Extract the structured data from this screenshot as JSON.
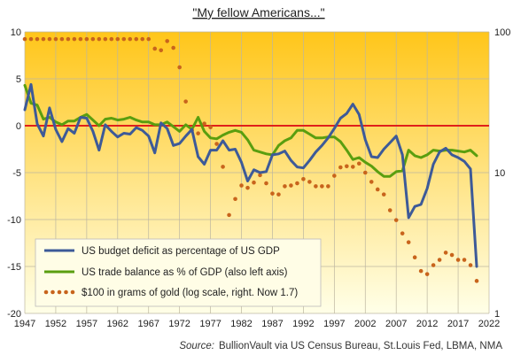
{
  "chart_data": {
    "type": "line",
    "title": "\"My fellow Americans...\"",
    "source_label": "Source:",
    "source_text": "BullionVault via US Census Bureau, St.Louis Fed, LBMA, NMA",
    "x_ticks": [
      "1947",
      "1952",
      "1957",
      "1962",
      "1967",
      "1972",
      "1977",
      "1982",
      "1987",
      "1992",
      "1997",
      "2002",
      "2007",
      "2012",
      "2017",
      "2022"
    ],
    "y_left_ticks": [
      "10",
      "5",
      "0",
      "-5",
      "-10",
      "-15",
      "-20"
    ],
    "y_right_ticks": [
      "100",
      "10",
      "1"
    ],
    "xlim": [
      1947,
      2022
    ],
    "ylim_left": [
      -20,
      10
    ],
    "ylim_right_log": [
      1,
      100
    ],
    "zero_line_color": "#e0201a",
    "grid": true,
    "legend_position": "bottom-left",
    "background_gradient": [
      "#ffc61a",
      "#ffffe8"
    ],
    "series": [
      {
        "name": "US budget deficit as percentage of US GDP",
        "color": "#3d5a98",
        "axis": "left",
        "style": "solid",
        "x": [
          1947,
          1948,
          1949,
          1950,
          1951,
          1952,
          1953,
          1954,
          1955,
          1956,
          1957,
          1958,
          1959,
          1960,
          1961,
          1962,
          1963,
          1964,
          1965,
          1966,
          1967,
          1968,
          1969,
          1970,
          1971,
          1972,
          1973,
          1974,
          1975,
          1976,
          1977,
          1978,
          1979,
          1980,
          1981,
          1982,
          1983,
          1984,
          1985,
          1986,
          1987,
          1988,
          1989,
          1990,
          1991,
          1992,
          1993,
          1994,
          1995,
          1996,
          1997,
          1998,
          1999,
          2000,
          2001,
          2002,
          2003,
          2004,
          2005,
          2006,
          2007,
          2008,
          2009,
          2010,
          2011,
          2012,
          2013,
          2014,
          2015,
          2016,
          2017,
          2018,
          2019,
          2020
        ],
        "y": [
          1.7,
          4.4,
          0.2,
          -1.1,
          1.9,
          -0.4,
          -1.7,
          -0.3,
          -0.8,
          0.9,
          0.8,
          -0.6,
          -2.6,
          0.1,
          -0.6,
          -1.2,
          -0.8,
          -0.9,
          -0.2,
          -0.5,
          -1.1,
          -2.9,
          0.3,
          -0.3,
          -2.1,
          -1.9,
          -1.1,
          -0.4,
          -3.3,
          -4.1,
          -2.6,
          -2.6,
          -1.6,
          -2.6,
          -2.5,
          -3.9,
          -5.9,
          -4.7,
          -5.0,
          -4.9,
          -3.1,
          -3.0,
          -2.7,
          -3.7,
          -4.4,
          -4.5,
          -3.7,
          -2.8,
          -2.1,
          -1.3,
          -0.3,
          0.8,
          1.3,
          2.3,
          1.2,
          -1.5,
          -3.3,
          -3.4,
          -2.5,
          -1.8,
          -1.1,
          -3.1,
          -9.8,
          -8.6,
          -8.4,
          -6.7,
          -4.1,
          -2.8,
          -2.4,
          -3.1,
          -3.4,
          -3.8,
          -4.6,
          -15.0
        ]
      },
      {
        "name": "US trade balance as % of GDP (also left axis)",
        "color": "#5a9e0f",
        "axis": "left",
        "style": "solid",
        "x": [
          1947,
          1948,
          1949,
          1950,
          1951,
          1952,
          1953,
          1954,
          1955,
          1956,
          1957,
          1958,
          1959,
          1960,
          1961,
          1962,
          1963,
          1964,
          1965,
          1966,
          1967,
          1968,
          1969,
          1970,
          1971,
          1972,
          1973,
          1974,
          1975,
          1976,
          1977,
          1978,
          1979,
          1980,
          1981,
          1982,
          1983,
          1984,
          1985,
          1986,
          1987,
          1988,
          1989,
          1990,
          1991,
          1992,
          1993,
          1994,
          1995,
          1996,
          1997,
          1998,
          1999,
          2000,
          2001,
          2002,
          2003,
          2004,
          2005,
          2006,
          2007,
          2008,
          2009,
          2010,
          2011,
          2012,
          2013,
          2014,
          2015,
          2016,
          2017,
          2018,
          2019,
          2020
        ],
        "y": [
          4.3,
          2.4,
          2.2,
          0.7,
          0.9,
          0.4,
          0.1,
          0.5,
          0.5,
          0.9,
          1.2,
          0.6,
          0.0,
          0.7,
          0.8,
          0.6,
          0.7,
          0.9,
          0.6,
          0.4,
          0.4,
          0.1,
          0.1,
          0.4,
          -0.1,
          -0.6,
          0.1,
          -0.4,
          0.9,
          -0.6,
          -1.3,
          -1.4,
          -1.0,
          -0.7,
          -0.5,
          -0.7,
          -1.5,
          -2.6,
          -2.8,
          -3.0,
          -3.1,
          -2.1,
          -1.6,
          -1.3,
          -0.5,
          -0.5,
          -0.9,
          -1.3,
          -1.3,
          -1.2,
          -1.2,
          -1.7,
          -2.6,
          -3.6,
          -3.4,
          -3.9,
          -4.3,
          -4.9,
          -5.4,
          -5.4,
          -4.9,
          -4.8,
          -2.6,
          -3.2,
          -3.4,
          -3.1,
          -2.6,
          -2.7,
          -2.6,
          -2.6,
          -2.7,
          -2.8,
          -2.6,
          -3.2
        ]
      },
      {
        "name": "$100 in grams of gold (log scale, right. Now 1.7)",
        "color": "#c8641c",
        "axis": "right",
        "style": "dotted",
        "x": [
          1947,
          1948,
          1949,
          1950,
          1951,
          1952,
          1953,
          1954,
          1955,
          1956,
          1957,
          1958,
          1959,
          1960,
          1961,
          1962,
          1963,
          1964,
          1965,
          1966,
          1967,
          1968,
          1969,
          1970,
          1971,
          1972,
          1973,
          1974,
          1975,
          1976,
          1977,
          1978,
          1979,
          1980,
          1981,
          1982,
          1983,
          1984,
          1985,
          1986,
          1987,
          1988,
          1989,
          1990,
          1991,
          1992,
          1993,
          1994,
          1995,
          1996,
          1997,
          1998,
          1999,
          2000,
          2001,
          2002,
          2003,
          2004,
          2005,
          2006,
          2007,
          2008,
          2009,
          2010,
          2011,
          2012,
          2013,
          2014,
          2015,
          2016,
          2017,
          2018,
          2019,
          2020
        ],
        "y": [
          88.9,
          88.9,
          88.9,
          88.9,
          88.9,
          88.9,
          88.9,
          88.9,
          88.9,
          88.9,
          88.9,
          88.9,
          88.9,
          88.9,
          88.9,
          88.9,
          88.9,
          88.9,
          88.9,
          88.9,
          88.9,
          76,
          74,
          86.0,
          77,
          56,
          32,
          20,
          19,
          22.3,
          21,
          16,
          11,
          5.0,
          6.5,
          8.1,
          7.8,
          8.5,
          9.6,
          8.4,
          7.1,
          7.0,
          8.0,
          8.1,
          8.4,
          9.0,
          8.6,
          8.0,
          8.0,
          8.0,
          9.5,
          10.9,
          11.1,
          11.0,
          11.6,
          10.0,
          8.6,
          7.6,
          7.0,
          5.4,
          4.6,
          3.7,
          3.2,
          2.5,
          2.0,
          1.9,
          2.2,
          2.4,
          2.7,
          2.6,
          2.4,
          2.4,
          2.2,
          1.7
        ]
      }
    ]
  }
}
